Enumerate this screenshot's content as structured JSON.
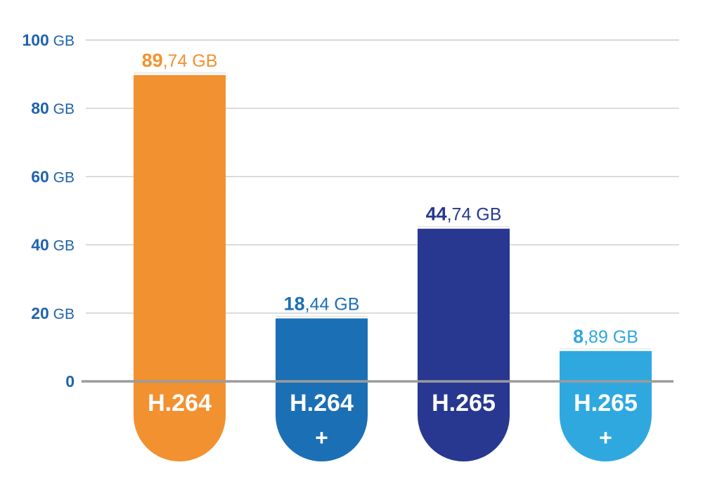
{
  "chart_data": {
    "type": "bar",
    "categories": [
      {
        "label": "H.264",
        "sub": ""
      },
      {
        "label": "H.264",
        "sub": "+"
      },
      {
        "label": "H.265",
        "sub": ""
      },
      {
        "label": "H.265",
        "sub": "+"
      }
    ],
    "values": [
      89.74,
      18.44,
      44.74,
      8.89
    ],
    "value_labels": [
      {
        "int": "89",
        "rest": ",74 GB"
      },
      {
        "int": "18",
        "rest": ",44 GB"
      },
      {
        "int": "44",
        "rest": ",74 GB"
      },
      {
        "int": "8",
        "rest": ",89 GB"
      }
    ],
    "colors": [
      "#f29130",
      "#1b6fb5",
      "#283891",
      "#2fa8e0"
    ],
    "ylim": [
      0,
      100
    ],
    "yticks": [
      {
        "num": "0",
        "unit": ""
      },
      {
        "num": "20",
        "unit": " GB"
      },
      {
        "num": "40",
        "unit": " GB"
      },
      {
        "num": "60",
        "unit": " GB"
      },
      {
        "num": "80",
        "unit": " GB"
      },
      {
        "num": "100",
        "unit": " GB"
      }
    ],
    "tick_color": "#1f63ad",
    "grid": true,
    "grid_color": "#cccccc",
    "baseline_color": "#9b9b9b"
  }
}
